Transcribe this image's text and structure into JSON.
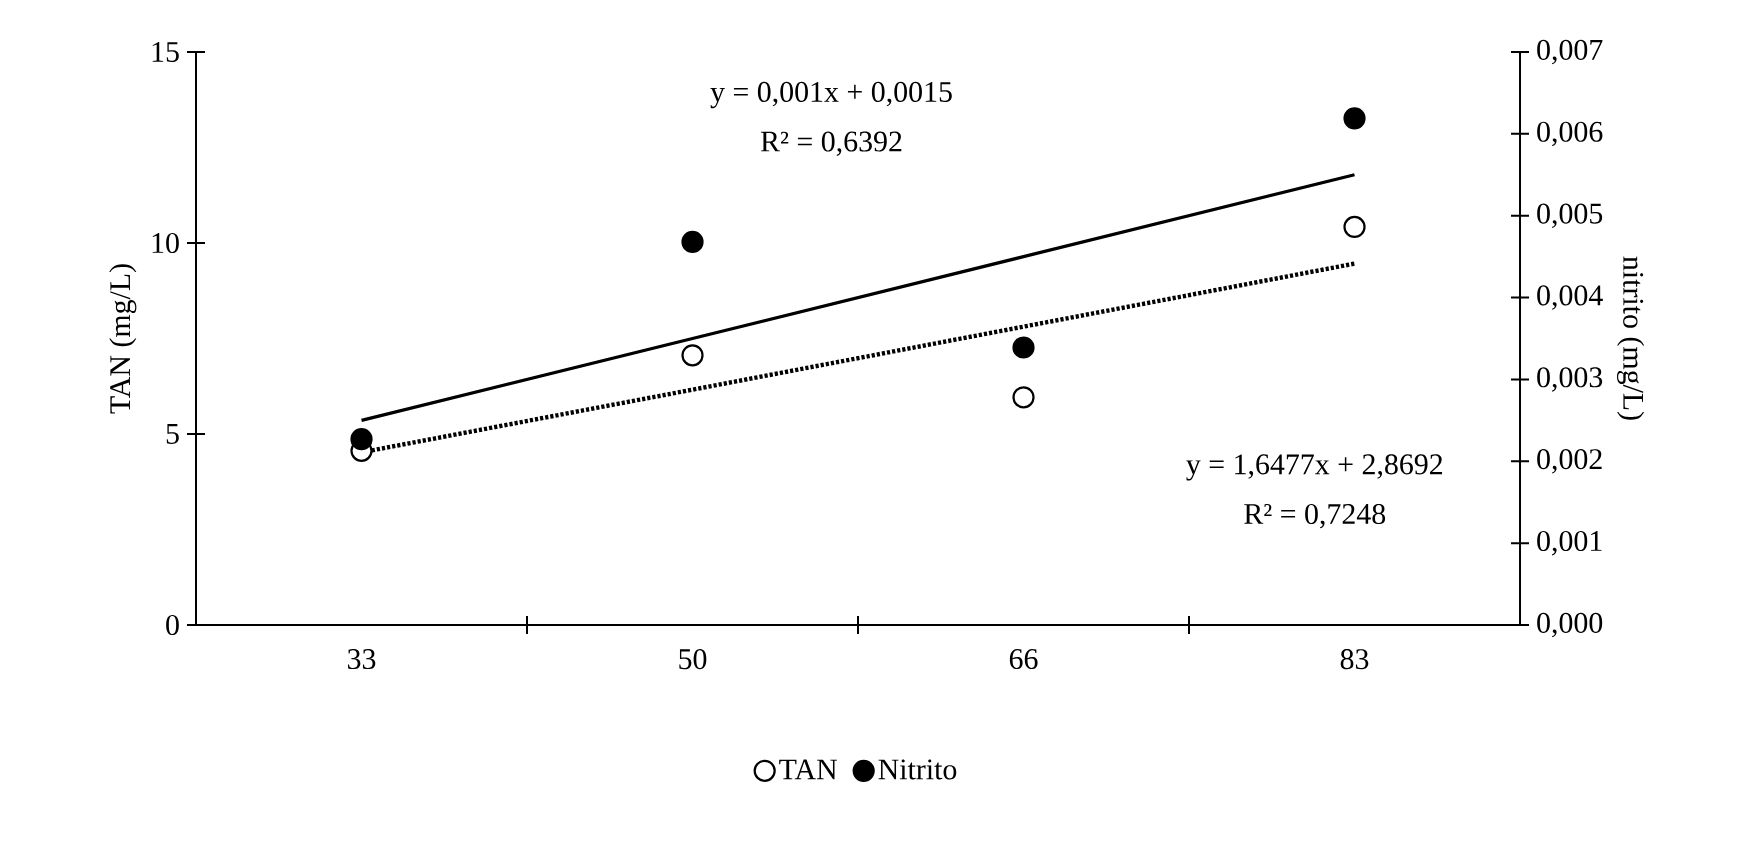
{
  "chart_data": {
    "type": "scatter",
    "categories": [
      "33",
      "50",
      "66",
      "83"
    ],
    "ylabel": "TAN (mg/L)",
    "y2label": "nitrito (mg/L)",
    "ylim": [
      0,
      15
    ],
    "yticks": [
      0,
      5,
      10,
      15
    ],
    "y2lim": [
      0,
      0.007
    ],
    "y2ticks": [
      {
        "value": 0,
        "label": "0,000"
      },
      {
        "value": 0.001,
        "label": "0,001"
      },
      {
        "value": 0.002,
        "label": "0,002"
      },
      {
        "value": 0.003,
        "label": "0,003"
      },
      {
        "value": 0.004,
        "label": "0,004"
      },
      {
        "value": 0.005,
        "label": "0,005"
      },
      {
        "value": 0.006,
        "label": "0,006"
      },
      {
        "value": 0.007,
        "label": "0,007"
      }
    ],
    "series": [
      {
        "name": "TAN",
        "color": "#ffffff",
        "marker": "circle",
        "values": [
          4.56,
          7.06,
          5.96,
          10.42
        ]
      },
      {
        "name": "Nitrito",
        "color": "#000000",
        "marker": "circle",
        "axis": "y2",
        "values": [
          0.00227,
          0.00468,
          0.00339,
          0.00619
        ]
      },
      {
        "type": "line",
        "color": "#000000",
        "line_style": "dotted",
        "marker": "none",
        "values": [
          4.52,
          6.16,
          7.81,
          9.46
        ]
      },
      {
        "type": "line",
        "color": "#000000",
        "line_style": "solid",
        "marker": "none",
        "axis": "y2",
        "values": [
          0.0025,
          0.0035,
          0.0045,
          0.0055
        ]
      }
    ],
    "annotations": [
      "y = 0,001x + 0,0015",
      "R² = 0,6392",
      "y = 1,6477x + 2,8692",
      "R² = 0,7248"
    ],
    "legend": "bottom"
  }
}
